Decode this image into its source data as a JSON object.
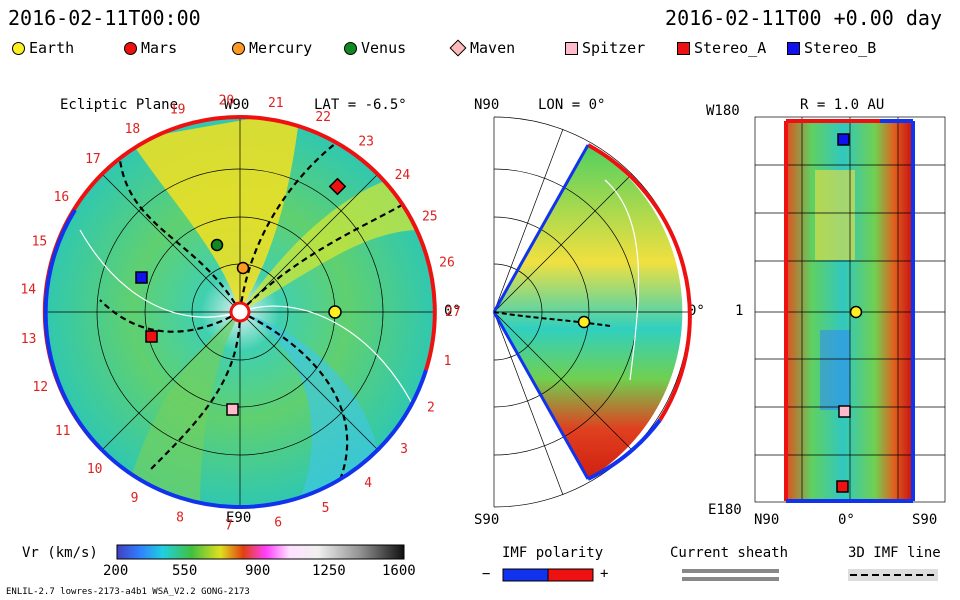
{
  "header": {
    "date_left": "2016-02-11T00:00",
    "date_right": "2016-02-11T00 +0.00 day"
  },
  "legend": [
    {
      "label": "Earth",
      "color": "#ffee22",
      "shape": "circle"
    },
    {
      "label": "Mars",
      "color": "#ee1111",
      "shape": "circle"
    },
    {
      "label": "Mercury",
      "color": "#ff9922",
      "shape": "circle"
    },
    {
      "label": "Venus",
      "color": "#118822",
      "shape": "circle"
    },
    {
      "label": "Maven",
      "color": "#ffbbbb",
      "shape": "diamond"
    },
    {
      "label": "Spitzer",
      "color": "#ffbbcc",
      "shape": "square"
    },
    {
      "label": "Stereo_A",
      "color": "#ee1111",
      "shape": "square"
    },
    {
      "label": "Stereo_B",
      "color": "#1111ee",
      "shape": "square"
    }
  ],
  "ecliptic": {
    "title": "Ecliptic Plane",
    "top_label": "W90",
    "lat_label": "LAT = -6.5°",
    "bottom_label": "E90",
    "right_label": "0°",
    "carrington": [
      "1",
      "2",
      "3",
      "4",
      "5",
      "6",
      "7",
      "8",
      "9",
      "10",
      "11",
      "12",
      "13",
      "14",
      "15",
      "16",
      "17",
      "18",
      "19",
      "20",
      "21",
      "22",
      "23",
      "24",
      "25",
      "26",
      "27"
    ]
  },
  "meridional": {
    "lon_label": "LON = 0°",
    "top": "N90",
    "bottom": "S90",
    "right": "0°"
  },
  "radial": {
    "r_label": "R = 1.0 AU",
    "top_left": "W180",
    "mid_left": "1",
    "bottom_left": "E180",
    "x_left": "N90",
    "x_mid": "0°",
    "x_right": "S90"
  },
  "colorbar": {
    "label": "Vr (km/s)",
    "ticks": [
      "200",
      "550",
      "900",
      "1250",
      "1600"
    ]
  },
  "imf": {
    "title": "IMF polarity",
    "minus": "−",
    "plus": "+"
  },
  "sheath": {
    "title": "Current sheath"
  },
  "imf3d": {
    "title": "3D IMF line"
  },
  "footer": {
    "left": "ENLIL-2.7 lowres-2173-a4b1 WSA_V2.2 GONG-2173"
  },
  "colors": {
    "slow": "#00d0c0",
    "fast": "#ffe000",
    "pos": "#ee1111",
    "neg": "#1133ee"
  }
}
